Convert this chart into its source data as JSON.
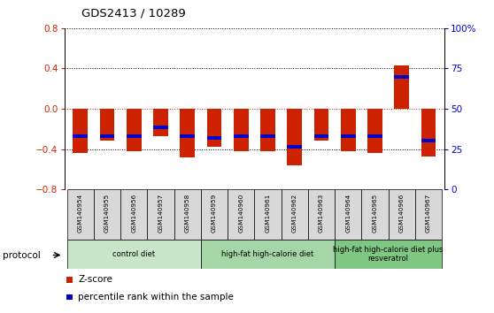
{
  "title": "GDS2413 / 10289",
  "samples": [
    "GSM140954",
    "GSM140955",
    "GSM140956",
    "GSM140957",
    "GSM140958",
    "GSM140959",
    "GSM140960",
    "GSM140961",
    "GSM140962",
    "GSM140963",
    "GSM140964",
    "GSM140965",
    "GSM140966",
    "GSM140967"
  ],
  "z_scores": [
    -0.44,
    -0.32,
    -0.42,
    -0.27,
    -0.48,
    -0.38,
    -0.42,
    -0.42,
    -0.56,
    -0.32,
    -0.42,
    -0.44,
    0.43,
    -0.47
  ],
  "percentile_ranks": [
    -0.27,
    -0.27,
    -0.27,
    -0.18,
    -0.27,
    -0.29,
    -0.27,
    -0.27,
    -0.38,
    -0.27,
    -0.27,
    -0.27,
    0.32,
    -0.32
  ],
  "ylim": [
    -0.8,
    0.8
  ],
  "yticks_left": [
    -0.8,
    -0.4,
    0.0,
    0.4,
    0.8
  ],
  "yticks_right": [
    0,
    25,
    50,
    75,
    100
  ],
  "groups": [
    {
      "label": "control diet",
      "start": 0,
      "end": 5,
      "color": "#c8e6c9"
    },
    {
      "label": "high-fat high-calorie diet",
      "start": 5,
      "end": 10,
      "color": "#a5d6a7"
    },
    {
      "label": "high-fat high-calorie diet plus\nresveratrol",
      "start": 10,
      "end": 14,
      "color": "#81c784"
    }
  ],
  "bar_color": "#cc2200",
  "marker_color": "#0000cc",
  "bar_width": 0.55,
  "zero_line_color": "#cc2200",
  "legend_zscore_color": "#cc2200",
  "legend_prank_color": "#0000cc"
}
